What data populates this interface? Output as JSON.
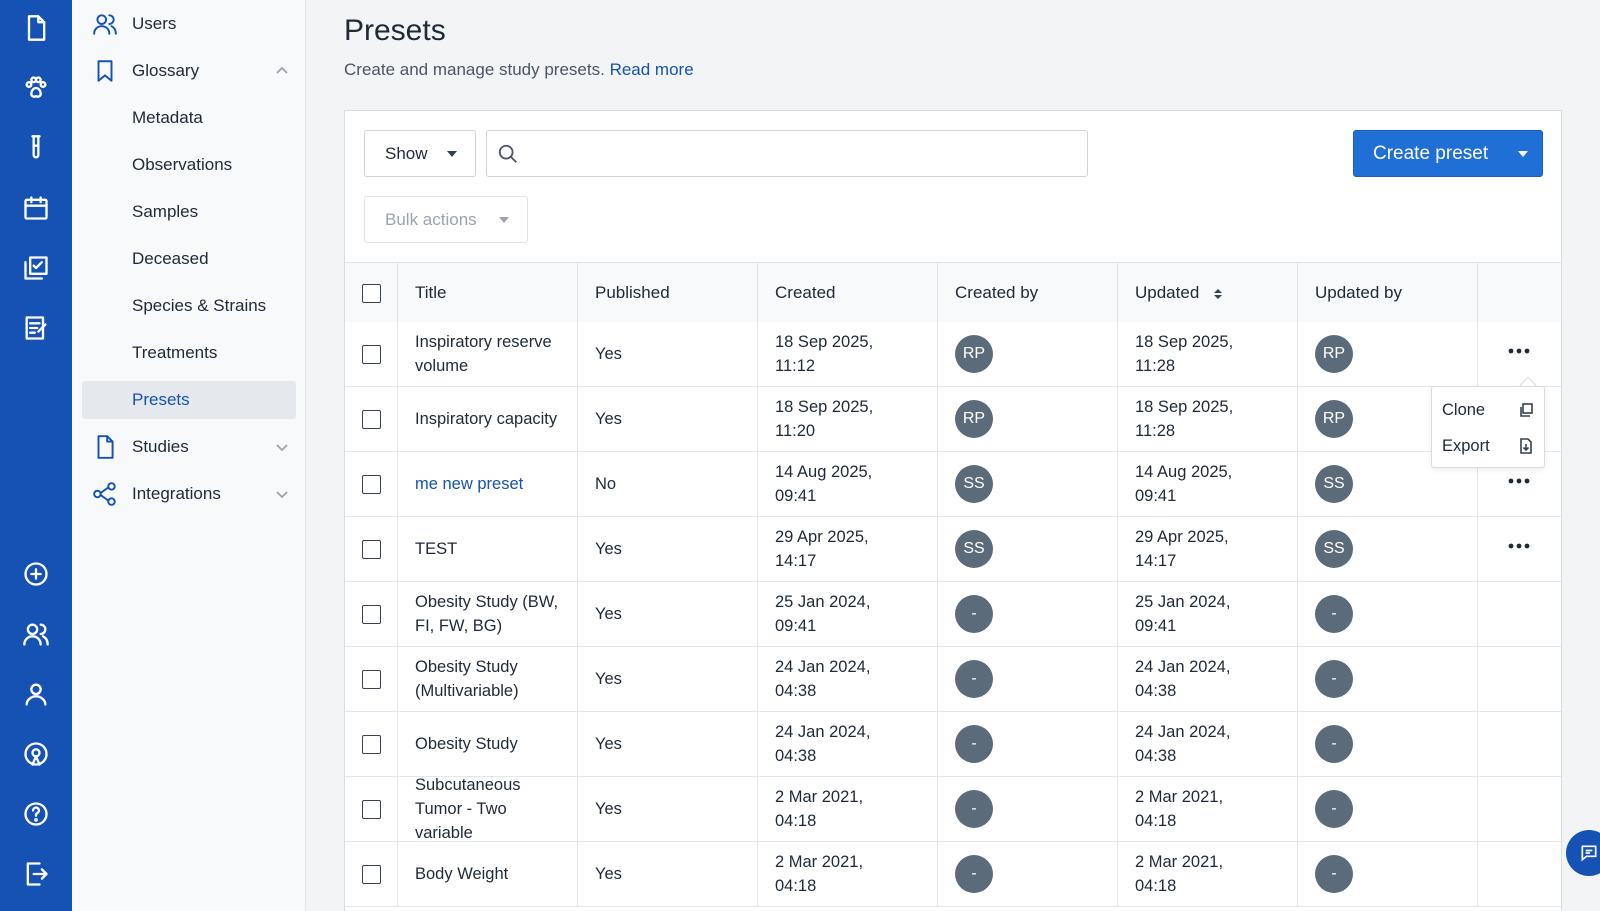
{
  "rail": {
    "top_icons": [
      "document-icon",
      "paw-icon",
      "test-tube-icon",
      "calendar-icon",
      "checklist-icon",
      "notes-icon"
    ],
    "bottom_icons": [
      "add-circle-icon",
      "team-icon",
      "profile-icon",
      "rocket-icon",
      "help-icon",
      "logout-icon"
    ]
  },
  "sidebar": {
    "users": "Users",
    "glossary": "Glossary",
    "glossary_items": [
      "Metadata",
      "Observations",
      "Samples",
      "Deceased",
      "Species & Strains",
      "Treatments",
      "Presets"
    ],
    "active_item": "Presets",
    "studies": "Studies",
    "integrations": "Integrations"
  },
  "header": {
    "title": "Presets",
    "subtitle": "Create and manage study presets.",
    "read_more": "Read more"
  },
  "toolbar": {
    "show_label": "Show",
    "search_value": "",
    "bulk_actions_label": "Bulk actions",
    "create_label": "Create preset"
  },
  "table": {
    "columns": [
      "Title",
      "Published",
      "Created",
      "Created by",
      "Updated",
      "Updated by"
    ],
    "sorted_column": "Updated",
    "rows": [
      {
        "title": "Inspiratory reserve volume",
        "published": "Yes",
        "created": "18 Sep 2025, 11:12",
        "created_by": "RP",
        "updated": "18 Sep 2025, 11:28",
        "updated_by": "RP",
        "has_menu": true,
        "title_link": false
      },
      {
        "title": "Inspiratory capacity",
        "published": "Yes",
        "created": "18 Sep 2025, 11:20",
        "created_by": "RP",
        "updated": "18 Sep 2025, 11:28",
        "updated_by": "RP",
        "has_menu": false,
        "title_link": false
      },
      {
        "title": "me new preset",
        "published": "No",
        "created": "14 Aug 2025, 09:41",
        "created_by": "SS",
        "updated": "14 Aug 2025, 09:41",
        "updated_by": "SS",
        "has_menu": true,
        "title_link": true
      },
      {
        "title": "TEST",
        "published": "Yes",
        "created": "29 Apr 2025, 14:17",
        "created_by": "SS",
        "updated": "29 Apr 2025, 14:17",
        "updated_by": "SS",
        "has_menu": true,
        "title_link": false
      },
      {
        "title": "Obesity Study (BW, FI, FW, BG)",
        "published": "Yes",
        "created": "25 Jan 2024, 09:41",
        "created_by": "-",
        "updated": "25 Jan 2024, 09:41",
        "updated_by": "-",
        "has_menu": false,
        "title_link": false
      },
      {
        "title": "Obesity Study (Multivariable)",
        "published": "Yes",
        "created": "24 Jan 2024, 04:38",
        "created_by": "-",
        "updated": "24 Jan 2024, 04:38",
        "updated_by": "-",
        "has_menu": false,
        "title_link": false
      },
      {
        "title": "Obesity Study",
        "published": "Yes",
        "created": "24 Jan 2024, 04:38",
        "created_by": "-",
        "updated": "24 Jan 2024, 04:38",
        "updated_by": "-",
        "has_menu": false,
        "title_link": false
      },
      {
        "title": "Subcutaneous Tumor - Two variable",
        "published": "Yes",
        "created": "2 Mar 2021, 04:18",
        "created_by": "-",
        "updated": "2 Mar 2021, 04:18",
        "updated_by": "-",
        "has_menu": false,
        "title_link": false
      },
      {
        "title": "Body Weight",
        "published": "Yes",
        "created": "2 Mar 2021, 04:18",
        "created_by": "-",
        "updated": "2 Mar 2021, 04:18",
        "updated_by": "-",
        "has_menu": false,
        "title_link": false
      }
    ]
  },
  "row_menu": {
    "items": [
      "Clone",
      "Export"
    ]
  },
  "colors": {
    "brand": "#1552b3",
    "primary_button": "#1f6fd6",
    "avatar": "#5c6b7a"
  }
}
